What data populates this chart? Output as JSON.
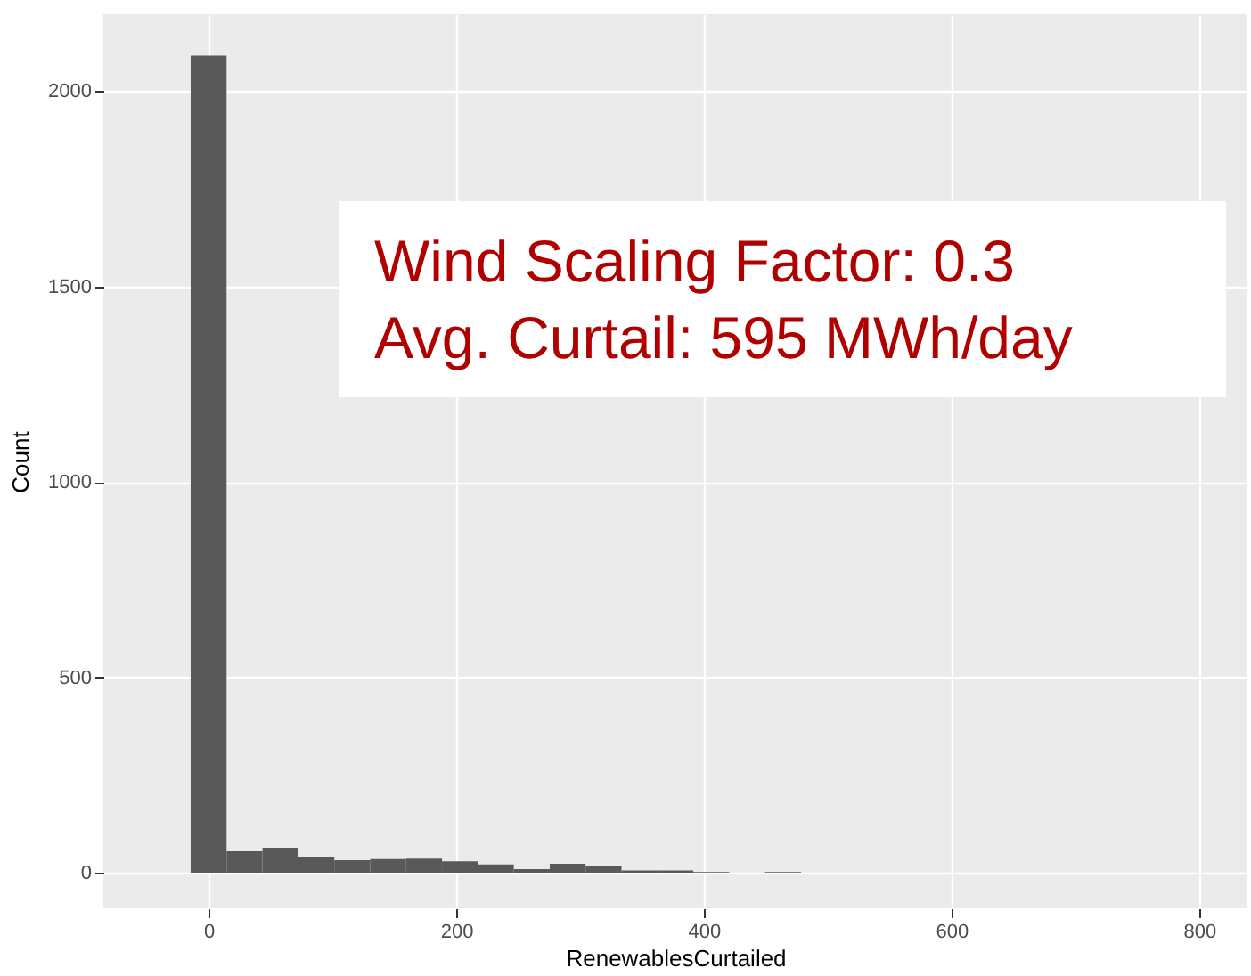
{
  "chart_data": {
    "type": "histogram",
    "xlabel": "RenewablesCurtailed",
    "ylabel": "Count",
    "bins": [
      -14.5,
      14.5,
      43.5,
      72.5,
      101.5,
      130.5,
      159.5,
      188.5,
      217.5,
      246.5,
      275.5,
      304.5,
      333.5,
      362.5,
      391.5,
      420.5,
      449.5,
      478.5
    ],
    "values": [
      2090,
      55,
      64,
      41,
      32,
      35,
      36,
      29,
      21,
      9,
      23,
      18,
      6,
      6,
      2,
      0,
      2
    ],
    "color": "#595959",
    "xlim": [
      -85,
      839
    ],
    "xticks": [
      0,
      200,
      400,
      600,
      800
    ],
    "ylim": [
      -91,
      2196
    ],
    "yticks": [
      0,
      500,
      1000,
      1500,
      2000
    ],
    "grid": true,
    "annotations": [
      "Wind Scaling Factor: 0.3",
      "Avg. Curtail: 595 MWh/day"
    ]
  }
}
